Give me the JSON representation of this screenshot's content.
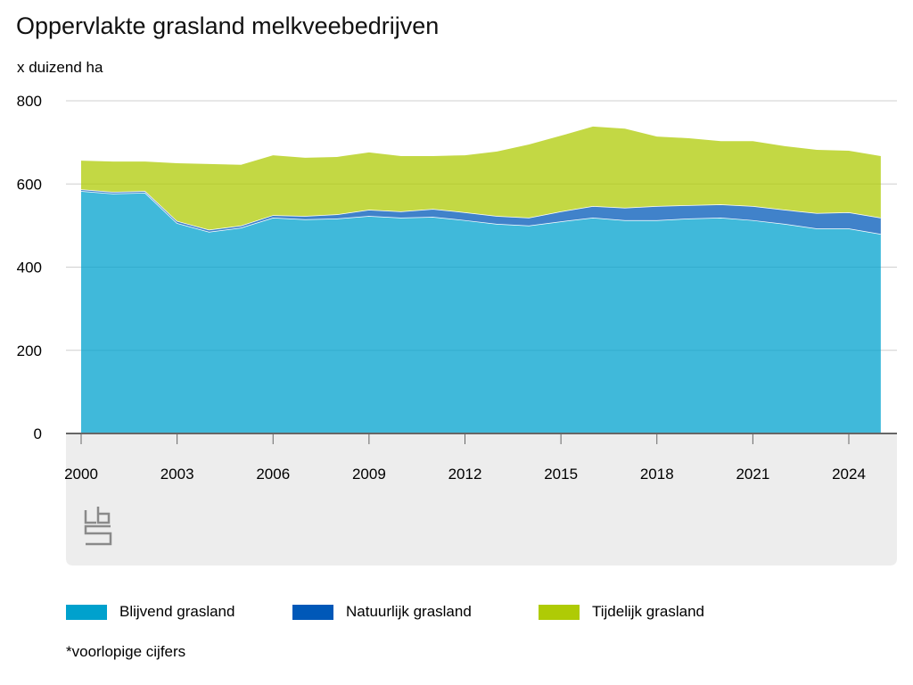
{
  "chart_data": {
    "type": "area",
    "stacked": true,
    "title": "Oppervlakte grasland melkveebedrijven",
    "ylabel": "x duizend ha",
    "xlabel": "",
    "ylim": [
      0,
      800
    ],
    "yticks": [
      "0",
      "200",
      "400",
      "600",
      "800"
    ],
    "xticks": [
      "2000",
      "2003",
      "2006",
      "2009",
      "2012",
      "2015",
      "2018",
      "2021",
      "2024"
    ],
    "x": [
      2000,
      2001,
      2002,
      2003,
      2004,
      2005,
      2006,
      2007,
      2008,
      2009,
      2010,
      2011,
      2012,
      2013,
      2014,
      2015,
      2016,
      2017,
      2018,
      2019,
      2020,
      2021,
      2022,
      2023,
      2024,
      2025
    ],
    "series": [
      {
        "name": "Blijvend grasland",
        "color": "#00a1cd",
        "values": [
          583,
          577,
          579,
          506,
          485,
          495,
          519,
          515,
          517,
          523,
          519,
          521,
          513,
          504,
          500,
          510,
          519,
          513,
          513,
          517,
          519,
          513,
          504,
          493,
          493,
          480
        ]
      },
      {
        "name": "Natuurlijk grasland",
        "color": "#0058b8",
        "values": [
          4,
          4,
          4,
          5,
          5,
          5,
          6,
          8,
          10,
          15,
          15,
          19,
          19,
          19,
          19,
          24,
          28,
          30,
          34,
          32,
          32,
          34,
          34,
          37,
          39,
          39
        ]
      },
      {
        "name": "Tijdelijk grasland",
        "color": "#afcb05",
        "values": [
          69,
          73,
          71,
          139,
          158,
          146,
          144,
          140,
          138,
          138,
          133,
          127,
          137,
          155,
          176,
          182,
          191,
          190,
          167,
          161,
          152,
          156,
          153,
          152,
          148,
          148
        ]
      }
    ],
    "legend": "bottom",
    "grid": true,
    "footnote": "*voorlopige cijfers",
    "logo": "cbs"
  }
}
